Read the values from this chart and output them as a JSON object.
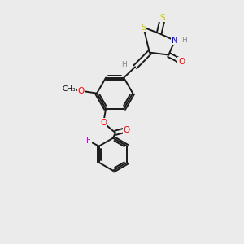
{
  "background_color": "#ebebeb",
  "figure_size": [
    3.0,
    3.0
  ],
  "dpi": 100,
  "label_colors": {
    "S": "#cccc00",
    "N": "#0000ff",
    "O": "#ff0000",
    "F": "#cc00cc",
    "H": "#888888",
    "C": "#000000"
  },
  "bond_color": "#1a1a1a",
  "lw": 1.4
}
